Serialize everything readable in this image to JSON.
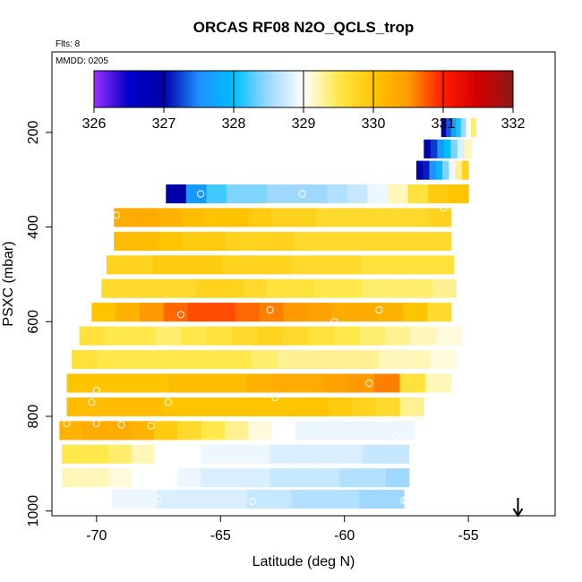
{
  "chart_data": {
    "type": "heatmap",
    "title": "ORCAS RF08 N2O_QCLS_trop",
    "annotations": {
      "flights": "Flts: 8",
      "date": "MMDD: 0205"
    },
    "xlabel": "Latitude (deg N)",
    "ylabel": "PSXC (mbar)",
    "xlim": [
      -71.8,
      -51.5
    ],
    "ylim": [
      1010,
      30
    ],
    "y_reversed": true,
    "xticks": [
      -70,
      -65,
      -60,
      -55
    ],
    "xtick_labels": [
      "-70",
      "-65",
      "-60",
      "-55"
    ],
    "yticks": [
      200,
      400,
      600,
      800,
      1000
    ],
    "ytick_labels": [
      "200",
      "400",
      "600",
      "800",
      "1000"
    ],
    "colorbar": {
      "min": 326,
      "max": 332,
      "ticks": [
        326,
        327,
        328,
        329,
        330,
        331,
        332
      ],
      "tick_labels": [
        "326",
        "327",
        "328",
        "329",
        "330",
        "331",
        "332"
      ],
      "stops": [
        {
          "v": 326.0,
          "c": "#9b30ff"
        },
        {
          "v": 326.5,
          "c": "#0000c8"
        },
        {
          "v": 327.0,
          "c": "#0000aa"
        },
        {
          "v": 327.5,
          "c": "#1e90ff"
        },
        {
          "v": 328.0,
          "c": "#00bfff"
        },
        {
          "v": 328.5,
          "c": "#9fd8ff"
        },
        {
          "v": 329.0,
          "c": "#ffffff"
        },
        {
          "v": 329.5,
          "c": "#ffe84a"
        },
        {
          "v": 330.0,
          "c": "#ffc400"
        },
        {
          "v": 330.5,
          "c": "#ff9a00"
        },
        {
          "v": 331.0,
          "c": "#ff1a00"
        },
        {
          "v": 331.5,
          "c": "#d00000"
        },
        {
          "v": 332.0,
          "c": "#8b1a1a"
        }
      ]
    },
    "row_height_mbar": 40,
    "rows": [
      {
        "p": 190,
        "lat_min": -56.1,
        "lat_max": -54.7,
        "values": [
          326.9,
          327.3,
          327.7,
          328.1,
          328.5,
          329.0,
          329.4
        ]
      },
      {
        "p": 235,
        "lat_min": -56.8,
        "lat_max": -54.9,
        "values": [
          326.9,
          327.2,
          327.6,
          328.0,
          328.4,
          328.8,
          329.2
        ]
      },
      {
        "p": 280,
        "lat_min": -57.1,
        "lat_max": -55.0,
        "values": [
          326.9,
          327.1,
          327.5,
          327.9,
          328.4,
          328.9,
          329.3,
          329.8
        ]
      },
      {
        "p": 330,
        "lat_min": -67.2,
        "lat_max": -55.0,
        "values": [
          327.0,
          327.6,
          328.2,
          328.4,
          328.4,
          328.5,
          328.5,
          328.5,
          328.6,
          328.7,
          328.9,
          329.2,
          329.6,
          329.9,
          330.0
        ]
      },
      {
        "p": 380,
        "lat_min": -69.3,
        "lat_max": -55.7,
        "values": [
          330.3,
          330.3,
          330.2,
          330.1,
          330.0,
          330.0,
          329.9,
          329.8,
          329.8,
          329.7,
          329.7,
          329.7,
          329.7,
          329.7,
          329.8
        ]
      },
      {
        "p": 430,
        "lat_min": -69.3,
        "lat_max": -55.7,
        "values": [
          330.1,
          330.1,
          330.0,
          329.9,
          329.9,
          329.8,
          329.8,
          329.8,
          329.7,
          329.7,
          329.7,
          329.7,
          329.7,
          329.7,
          329.7
        ]
      },
      {
        "p": 480,
        "lat_min": -69.6,
        "lat_max": -55.6,
        "values": [
          329.8,
          329.8,
          329.9,
          329.9,
          329.9,
          329.8,
          329.8,
          329.8,
          329.7,
          329.7,
          329.7,
          329.6,
          329.6,
          329.6,
          329.6
        ]
      },
      {
        "p": 530,
        "lat_min": -69.8,
        "lat_max": -55.5,
        "values": [
          329.7,
          329.7,
          329.7,
          329.7,
          329.8,
          329.8,
          329.7,
          329.6,
          329.6,
          329.5,
          329.5,
          329.4,
          329.4,
          329.4,
          329.3
        ]
      },
      {
        "p": 580,
        "lat_min": -70.2,
        "lat_max": -55.7,
        "values": [
          330.0,
          330.2,
          330.5,
          330.7,
          330.8,
          330.8,
          330.7,
          330.6,
          330.5,
          330.4,
          330.3,
          330.3,
          330.2,
          330.0,
          329.7
        ]
      },
      {
        "p": 630,
        "lat_min": -70.7,
        "lat_max": -55.3,
        "values": [
          329.6,
          329.5,
          329.5,
          329.4,
          329.5,
          329.6,
          329.7,
          329.8,
          329.7,
          329.6,
          329.5,
          329.4,
          329.3,
          329.2,
          329.1
        ]
      },
      {
        "p": 680,
        "lat_min": -71.0,
        "lat_max": -55.5,
        "values": [
          329.6,
          329.5,
          329.5,
          329.5,
          329.5,
          329.5,
          329.5,
          329.4,
          329.3,
          329.3,
          329.3,
          329.3,
          329.2,
          329.2,
          329.1
        ]
      },
      {
        "p": 730,
        "lat_min": -71.2,
        "lat_max": -55.7,
        "values": [
          330.0,
          330.0,
          330.0,
          330.0,
          330.1,
          330.1,
          330.1,
          330.2,
          330.3,
          330.3,
          330.4,
          330.5,
          330.6,
          329.6,
          329.2
        ]
      },
      {
        "p": 780,
        "lat_min": -71.2,
        "lat_max": -56.8,
        "values": [
          330.1,
          330.1,
          330.1,
          330.1,
          330.0,
          330.0,
          330.0,
          330.0,
          330.0,
          330.0,
          330.0,
          329.9,
          329.8,
          329.7,
          329.3
        ]
      },
      {
        "p": 830,
        "lat_min": -71.5,
        "lat_max": -57.2,
        "values": [
          330.2,
          330.3,
          330.3,
          330.2,
          329.9,
          329.7,
          329.5,
          329.3,
          329.1,
          329.0,
          328.9,
          328.9,
          328.9,
          328.9,
          328.9
        ]
      },
      {
        "p": 880,
        "lat_min": -71.4,
        "lat_max": -57.4,
        "values": [
          329.5,
          329.5,
          329.4,
          329.2,
          329.0,
          329.0,
          328.9,
          328.9,
          328.9,
          328.8,
          328.8,
          328.8,
          328.8,
          328.7,
          328.7
        ]
      },
      {
        "p": 930,
        "lat_min": -71.4,
        "lat_max": -57.4,
        "values": [
          329.2,
          329.2,
          329.1,
          329.0,
          329.0,
          328.9,
          328.8,
          328.8,
          328.8,
          328.7,
          328.7,
          328.7,
          328.6,
          328.6,
          328.5
        ]
      },
      {
        "p": 975,
        "lat_min": -71.2,
        "lat_max": -57.6,
        "values": [
          329.0,
          329.0,
          328.9,
          328.9,
          328.8,
          328.8,
          328.8,
          328.8,
          328.7,
          328.7,
          328.6,
          328.6,
          328.6,
          328.5,
          328.5
        ]
      }
    ],
    "sample_points": [
      [
        -69.2,
        375
      ],
      [
        -66.6,
        585
      ],
      [
        -65.8,
        330
      ],
      [
        -63.0,
        575
      ],
      [
        -61.7,
        330
      ],
      [
        -60.4,
        600
      ],
      [
        -58.6,
        575
      ],
      [
        -59.0,
        730
      ],
      [
        -62.8,
        760
      ],
      [
        -67.1,
        770
      ],
      [
        -70.0,
        745
      ],
      [
        -70.2,
        770
      ],
      [
        -71.2,
        815
      ],
      [
        -70.0,
        815
      ],
      [
        -69.0,
        818
      ],
      [
        -67.8,
        820
      ],
      [
        -57.9,
        840
      ],
      [
        -56.0,
        360
      ],
      [
        -67.5,
        975
      ],
      [
        -63.7,
        980
      ],
      [
        -57.6,
        978
      ],
      [
        -57.5,
        978
      ]
    ],
    "marker": {
      "lat": -53.0,
      "direction": "down"
    }
  }
}
